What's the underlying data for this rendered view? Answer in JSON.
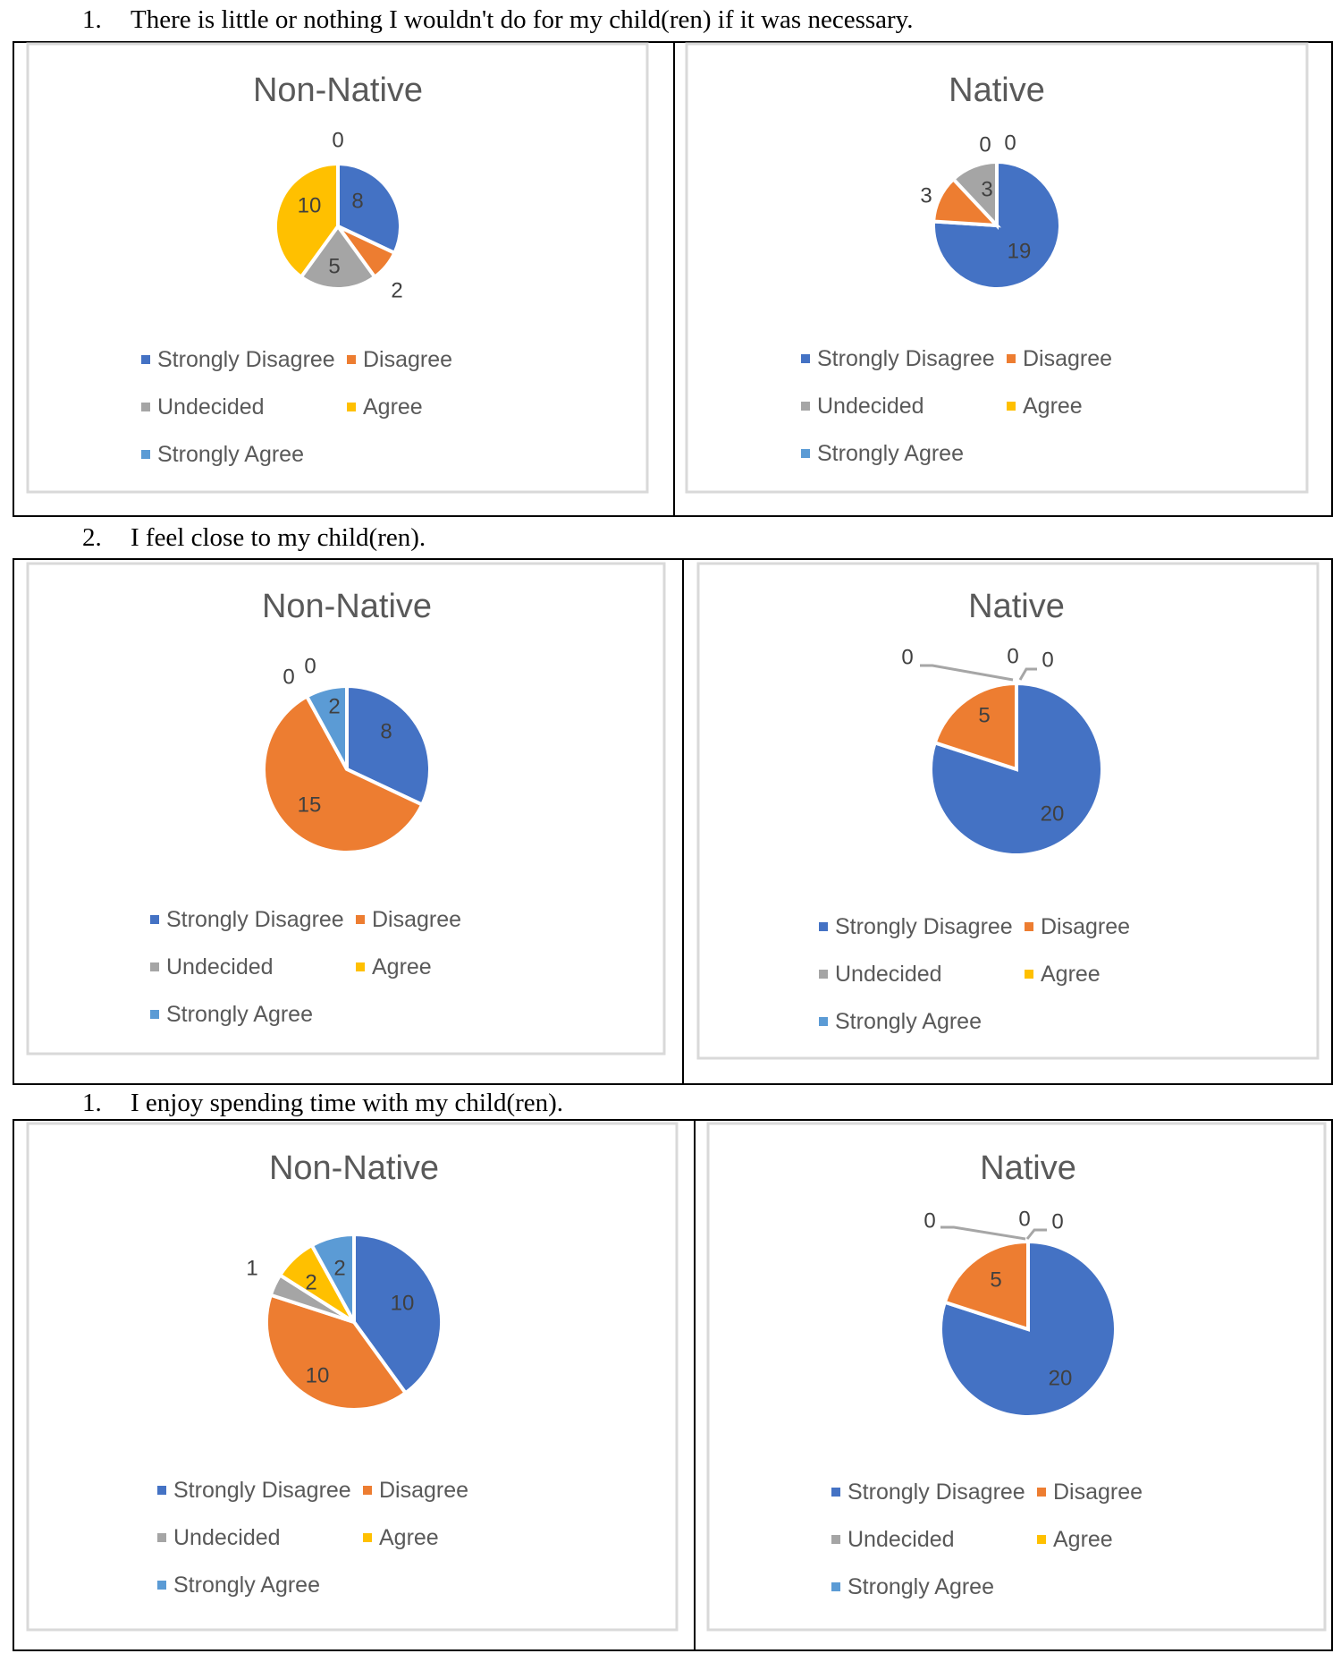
{
  "legend_categories": [
    "Strongly Disagree",
    "Disagree",
    "Undecided",
    "Agree",
    "Strongly Agree"
  ],
  "colors": {
    "Strongly Disagree": "#4472C4",
    "Disagree": "#ED7D31",
    "Undecided": "#A5A5A5",
    "Agree": "#FFC000",
    "Strongly Agree": "#5B9BD5"
  },
  "questions": [
    {
      "number": "1.",
      "text": "There is little or nothing I wouldn't do for my child(ren) if it was necessary."
    },
    {
      "number": "2.",
      "text": "I feel close to my child(ren)."
    },
    {
      "number": "1.",
      "text": "I enjoy spending time with my child(ren)."
    }
  ],
  "chart_data": [
    {
      "type": "pie",
      "question_index": 0,
      "title": "Non-Native",
      "categories": [
        "Strongly Disagree",
        "Disagree",
        "Undecided",
        "Agree",
        "Strongly Agree"
      ],
      "values": [
        8,
        2,
        5,
        10,
        0
      ],
      "legend": "bottom"
    },
    {
      "type": "pie",
      "question_index": 0,
      "title": "Native",
      "categories": [
        "Strongly Disagree",
        "Disagree",
        "Undecided",
        "Agree",
        "Strongly Agree"
      ],
      "values": [
        19,
        3,
        3,
        0,
        0
      ],
      "legend": "bottom"
    },
    {
      "type": "pie",
      "question_index": 1,
      "title": "Non-Native",
      "categories": [
        "Strongly Disagree",
        "Disagree",
        "Undecided",
        "Agree",
        "Strongly Agree"
      ],
      "values": [
        8,
        15,
        0,
        0,
        2
      ],
      "legend": "bottom"
    },
    {
      "type": "pie",
      "question_index": 1,
      "title": "Native",
      "categories": [
        "Strongly Disagree",
        "Disagree",
        "Undecided",
        "Agree",
        "Strongly Agree"
      ],
      "values": [
        20,
        5,
        0,
        0,
        0
      ],
      "legend": "bottom"
    },
    {
      "type": "pie",
      "question_index": 2,
      "title": "Non-Native",
      "categories": [
        "Strongly Disagree",
        "Disagree",
        "Undecided",
        "Agree",
        "Strongly Agree"
      ],
      "values": [
        10,
        10,
        1,
        2,
        2
      ],
      "legend": "bottom"
    },
    {
      "type": "pie",
      "question_index": 2,
      "title": "Native",
      "categories": [
        "Strongly Disagree",
        "Disagree",
        "Undecided",
        "Agree",
        "Strongly Agree"
      ],
      "values": [
        20,
        5,
        0,
        0,
        0
      ],
      "legend": "bottom"
    }
  ]
}
